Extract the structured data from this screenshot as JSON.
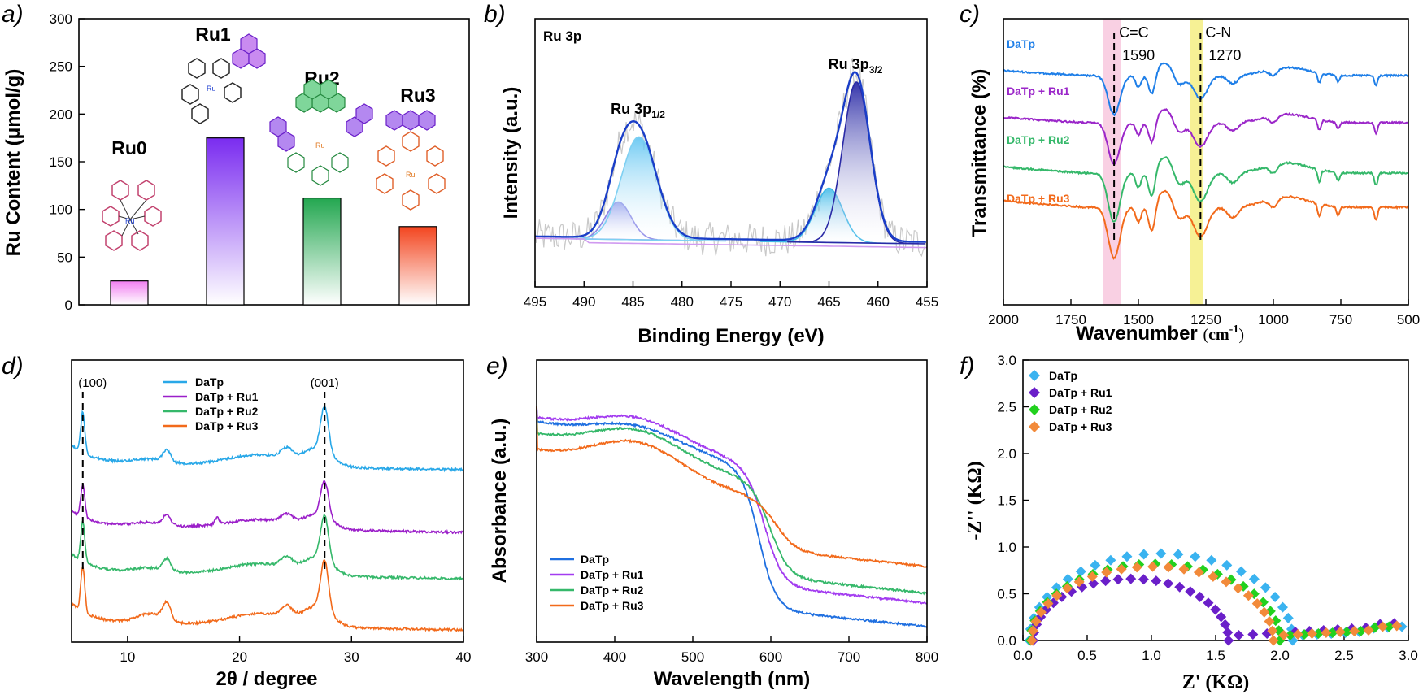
{
  "figure": {
    "panels": {
      "a": "a)",
      "b": "b)",
      "c": "c)",
      "d": "d)",
      "e": "e)",
      "f": "f)"
    }
  },
  "chart_data": [
    {
      "id": "a",
      "type": "bar",
      "ylabel": "Ru Content (μmol/g)",
      "ylim": [
        0,
        300
      ],
      "yticks": [
        0,
        50,
        100,
        150,
        200,
        250,
        300
      ],
      "categories": [
        "Ru0",
        "Ru1",
        "Ru2",
        "Ru3"
      ],
      "values": [
        25,
        175,
        112,
        82
      ],
      "colors": [
        "#f07ef0",
        "#8a3cf0",
        "#2faa55",
        "#f3502a"
      ],
      "grid": false
    },
    {
      "id": "b",
      "type": "line",
      "panel_label": "Ru 3p",
      "xlabel": "Binding Energy (eV)",
      "ylabel": "Intensity (a.u.)",
      "xlim": [
        495,
        455
      ],
      "xticks": [
        495,
        490,
        485,
        480,
        475,
        470,
        465,
        460,
        455
      ],
      "peaks": [
        {
          "label": "Ru 3p",
          "sub": "1/2",
          "position": 484.5
        },
        {
          "label": "Ru 3p",
          "sub": "3/2",
          "position": 462.3
        }
      ],
      "components": [
        {
          "center": 486.5,
          "height": 0.2,
          "width": 1.3,
          "color": "#8a85e6"
        },
        {
          "center": 484.4,
          "height": 0.55,
          "width": 1.8,
          "color": "#7ed0f2"
        },
        {
          "center": 465.0,
          "height": 0.29,
          "width": 1.4,
          "color": "#3fb9e8"
        },
        {
          "center": 462.2,
          "height": 0.86,
          "width": 1.4,
          "color": "#2a2aa6"
        }
      ],
      "grid": false
    },
    {
      "id": "c",
      "type": "line",
      "xlabel": "Wavenumber",
      "xunit": "cm",
      "xunit_sup": "-1",
      "ylabel": "Transmittance (%)",
      "xlim": [
        2000,
        500
      ],
      "xticks": [
        2000,
        1750,
        1500,
        1250,
        1000,
        750,
        500
      ],
      "annotations": [
        {
          "label": "C=C",
          "value": "1590",
          "x": 1590
        },
        {
          "label": "C-N",
          "value": "1270",
          "x": 1270
        }
      ],
      "series": [
        {
          "name": "DaTp",
          "color": "#1f7fe8"
        },
        {
          "name": "DaTp + Ru1",
          "color": "#9b27c9"
        },
        {
          "name": "DaTp + Ru2",
          "color": "#35b86a"
        },
        {
          "name": "DaTp + Ru3",
          "color": "#f26a1b"
        }
      ],
      "grid": false
    },
    {
      "id": "d",
      "type": "line",
      "xlabel": "2θ / degree",
      "xlim": [
        5,
        40
      ],
      "xticks": [
        10,
        20,
        30,
        40
      ],
      "annotations": [
        {
          "label": "(100)",
          "x": 6.0
        },
        {
          "label": "(001)",
          "x": 27.6
        }
      ],
      "series": [
        {
          "name": "DaTp",
          "color": "#29a8e8"
        },
        {
          "name": "DaTp + Ru1",
          "color": "#9b1fc9"
        },
        {
          "name": "DaTp + Ru2",
          "color": "#35b86a"
        },
        {
          "name": "DaTp + Ru3",
          "color": "#f26a1b"
        }
      ],
      "legend": "top-center",
      "grid": false
    },
    {
      "id": "e",
      "type": "line",
      "xlabel": "Wavelength (nm)",
      "ylabel": "Absorbance (a.u.)",
      "xlim": [
        300,
        800
      ],
      "xticks": [
        300,
        400,
        500,
        600,
        700,
        800
      ],
      "series": [
        {
          "name": "DaTp",
          "color": "#1f6fe0"
        },
        {
          "name": "DaTp + Ru1",
          "color": "#a33cf0"
        },
        {
          "name": "DaTp + Ru2",
          "color": "#35b86a"
        },
        {
          "name": "DaTp + Ru3",
          "color": "#f26a1b"
        }
      ],
      "legend": "bottom-left",
      "grid": false
    },
    {
      "id": "f",
      "type": "scatter",
      "xlabel": "Z' (KΩ)",
      "ylabel": "-Z'' (KΩ)",
      "xlim": [
        0,
        3.0
      ],
      "ylim": [
        0,
        3.0
      ],
      "xticks": [
        0.0,
        0.5,
        1.0,
        1.5,
        2.0,
        2.5,
        3.0
      ],
      "yticks": [
        0.0,
        0.5,
        1.0,
        1.5,
        2.0,
        2.5,
        3.0
      ],
      "series": [
        {
          "name": "DaTp",
          "color": "#3ab3f0",
          "semicircle": [
            0.05,
            2.1,
            0.93
          ],
          "tail": 2.2
        },
        {
          "name": "DaTp + Ru1",
          "color": "#6a1fc9",
          "semicircle": [
            0.08,
            1.6,
            0.66
          ],
          "tail": 1.72
        },
        {
          "name": "DaTp + Ru2",
          "color": "#22d11e",
          "semicircle": [
            0.06,
            2.0,
            0.82
          ],
          "tail": 2.12
        },
        {
          "name": "DaTp + Ru3",
          "color": "#f28a3a",
          "semicircle": [
            0.07,
            1.95,
            0.79
          ],
          "tail": 2.08
        }
      ],
      "legend": "top-left",
      "grid": false
    }
  ]
}
